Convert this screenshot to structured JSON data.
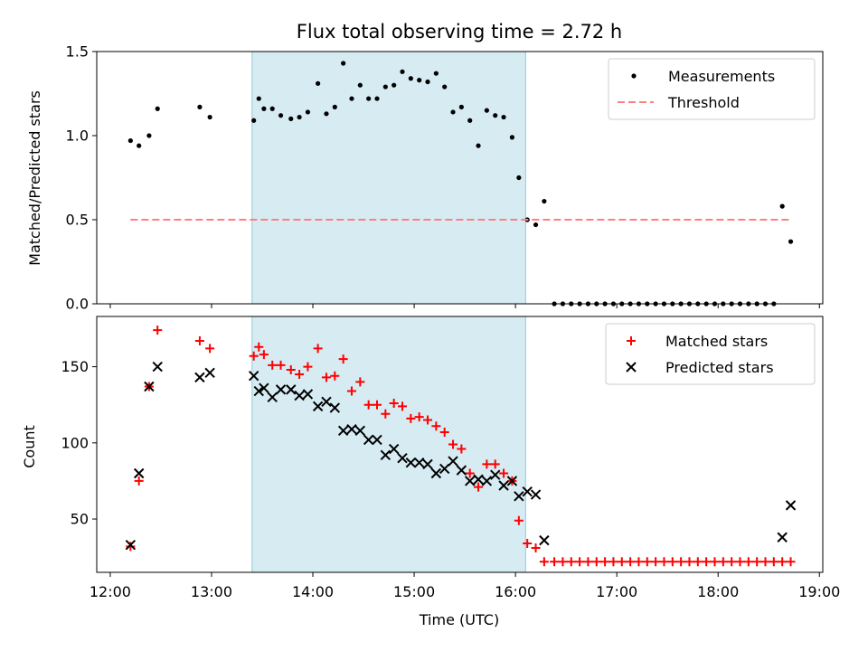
{
  "chart_data": [
    {
      "type": "scatter",
      "title": "Flux total observing time = 2.72 h",
      "ylabel": "Matched/Predicted stars",
      "xlabel": "",
      "ylim": [
        0,
        1.5
      ],
      "yticks": [
        "0.0",
        "0.5",
        "1.0",
        "1.5"
      ],
      "xlim": [
        "11:52",
        "19:02"
      ],
      "shaded_interval": [
        "13:24",
        "16:06"
      ],
      "shaded_color": "#add8e6",
      "legend_position": "upper right",
      "series": [
        {
          "name": "Measurements",
          "marker": "dot",
          "color": "#000000",
          "x": [
            "12:12",
            "12:17",
            "12:23",
            "12:28",
            "12:53",
            "12:59",
            "13:25",
            "13:28",
            "13:31",
            "13:36",
            "13:41",
            "13:47",
            "13:52",
            "13:57",
            "14:03",
            "14:08",
            "14:13",
            "14:18",
            "14:23",
            "14:28",
            "14:33",
            "14:38",
            "14:43",
            "14:48",
            "14:53",
            "14:58",
            "15:03",
            "15:08",
            "15:13",
            "15:18",
            "15:23",
            "15:28",
            "15:33",
            "15:38",
            "15:43",
            "15:48",
            "15:53",
            "15:58",
            "16:02",
            "16:07",
            "16:12",
            "16:17",
            "16:23",
            "16:28",
            "16:33",
            "16:38",
            "16:43",
            "16:48",
            "16:53",
            "16:58",
            "17:03",
            "17:08",
            "17:13",
            "17:18",
            "17:23",
            "17:28",
            "17:33",
            "17:38",
            "17:43",
            "17:48",
            "17:53",
            "17:58",
            "18:03",
            "18:08",
            "18:13",
            "18:18",
            "18:23",
            "18:28",
            "18:33",
            "18:38",
            "18:43"
          ],
          "y": [
            0.97,
            0.94,
            1.0,
            1.16,
            1.17,
            1.11,
            1.09,
            1.22,
            1.16,
            1.16,
            1.12,
            1.1,
            1.11,
            1.14,
            1.31,
            1.13,
            1.17,
            1.43,
            1.22,
            1.3,
            1.22,
            1.22,
            1.29,
            1.3,
            1.38,
            1.34,
            1.33,
            1.32,
            1.37,
            1.29,
            1.14,
            1.17,
            1.09,
            0.94,
            1.15,
            1.12,
            1.11,
            0.99,
            0.75,
            0.5,
            0.47,
            0.61,
            0,
            0,
            0,
            0,
            0,
            0,
            0,
            0,
            0,
            0,
            0,
            0,
            0,
            0,
            0,
            0,
            0,
            0,
            0,
            0,
            0,
            0,
            0,
            0,
            0,
            0,
            0,
            0.58,
            0.37
          ]
        },
        {
          "name": "Threshold",
          "line": "dashed",
          "color": "#ff7f7f",
          "x": [
            "12:12",
            "18:43"
          ],
          "y": [
            0.5,
            0.5
          ]
        }
      ]
    },
    {
      "type": "scatter",
      "title": "",
      "xlabel": "Time (UTC)",
      "ylabel": "Count",
      "ylim": [
        15,
        183
      ],
      "yticks": [
        "50",
        "100",
        "150"
      ],
      "xticks": [
        "12:00",
        "13:00",
        "14:00",
        "15:00",
        "16:00",
        "17:00",
        "18:00",
        "19:00"
      ],
      "xlim": [
        "11:52",
        "19:02"
      ],
      "shaded_interval": [
        "13:24",
        "16:06"
      ],
      "shaded_color": "#add8e6",
      "legend_position": "upper right",
      "series": [
        {
          "name": "Matched stars",
          "marker": "plus",
          "color": "#ff0000",
          "x": [
            "12:12",
            "12:17",
            "12:23",
            "12:28",
            "12:53",
            "12:59",
            "13:25",
            "13:28",
            "13:31",
            "13:36",
            "13:41",
            "13:47",
            "13:52",
            "13:57",
            "14:03",
            "14:08",
            "14:13",
            "14:18",
            "14:23",
            "14:28",
            "14:33",
            "14:38",
            "14:43",
            "14:48",
            "14:53",
            "14:58",
            "15:03",
            "15:08",
            "15:13",
            "15:18",
            "15:23",
            "15:28",
            "15:33",
            "15:38",
            "15:43",
            "15:48",
            "15:53",
            "15:58",
            "16:02",
            "16:07",
            "16:12",
            "16:17",
            "16:23",
            "16:28",
            "16:33",
            "16:38",
            "16:43",
            "16:48",
            "16:53",
            "16:58",
            "17:03",
            "17:08",
            "17:13",
            "17:18",
            "17:23",
            "17:28",
            "17:33",
            "17:38",
            "17:43",
            "17:48",
            "17:53",
            "17:58",
            "18:03",
            "18:08",
            "18:13",
            "18:18",
            "18:23",
            "18:28",
            "18:33",
            "18:38",
            "18:43"
          ],
          "y": [
            32,
            75,
            137,
            174,
            167,
            162,
            157,
            163,
            158,
            151,
            151,
            148,
            145,
            150,
            162,
            143,
            144,
            155,
            134,
            140,
            125,
            125,
            119,
            126,
            124,
            116,
            117,
            115,
            111,
            107,
            99,
            96,
            80,
            71,
            86,
            86,
            80,
            75,
            49,
            34,
            31,
            22,
            22,
            22,
            22,
            22,
            22,
            22,
            22,
            22,
            22,
            22,
            22,
            22,
            22,
            22,
            22,
            22,
            22,
            22,
            22,
            22,
            22,
            22,
            22,
            22,
            22,
            22,
            22,
            22,
            22
          ]
        },
        {
          "name": "Predicted stars",
          "marker": "x",
          "color": "#000000",
          "x": [
            "12:12",
            "12:17",
            "12:23",
            "12:28",
            "12:53",
            "12:59",
            "13:25",
            "13:28",
            "13:31",
            "13:36",
            "13:41",
            "13:47",
            "13:52",
            "13:57",
            "14:03",
            "14:08",
            "14:13",
            "14:18",
            "14:23",
            "14:28",
            "14:33",
            "14:38",
            "14:43",
            "14:48",
            "14:53",
            "14:58",
            "15:03",
            "15:08",
            "15:13",
            "15:18",
            "15:23",
            "15:28",
            "15:33",
            "15:38",
            "15:43",
            "15:48",
            "15:53",
            "15:58",
            "16:02",
            "16:07",
            "16:12",
            "16:17",
            "18:38",
            "18:43"
          ],
          "y": [
            33,
            80,
            137,
            150,
            143,
            146,
            144,
            134,
            136,
            130,
            135,
            135,
            131,
            132,
            124,
            127,
            123,
            108,
            109,
            108,
            102,
            102,
            92,
            96,
            90,
            87,
            87,
            86,
            80,
            83,
            88,
            82,
            75,
            76,
            75,
            79,
            72,
            75,
            65,
            68,
            66,
            36,
            38,
            59
          ]
        }
      ]
    }
  ]
}
